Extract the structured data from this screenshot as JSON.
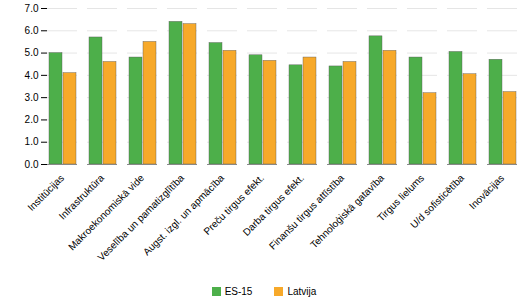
{
  "chart_data": {
    "type": "bar",
    "categories": [
      "Institūcijas",
      "Infrastruktūra",
      "Makroekonomiskā vide",
      "Veselība un pamatizglītība",
      "Augst. izgl. un apmācība",
      "Preču tirgus efekt.",
      "Darba tirgus efekt.",
      "Finanšu tirgus attīstība",
      "Tehnoloģiskā gatavība",
      "Tirgus lielums",
      "U/d sofisticētība",
      "Inovācijas"
    ],
    "series": [
      {
        "name": "ES-15",
        "color": "#4daf4a",
        "values": [
          5.0,
          5.7,
          4.8,
          6.4,
          5.45,
          4.9,
          4.45,
          4.4,
          5.75,
          4.8,
          5.05,
          4.7
        ]
      },
      {
        "name": "Latvija",
        "color": "#f7a92a",
        "values": [
          4.1,
          4.6,
          5.5,
          6.3,
          5.1,
          4.65,
          4.8,
          4.6,
          5.1,
          3.2,
          4.05,
          3.25
        ]
      }
    ],
    "ylim": [
      0,
      7
    ],
    "yticks": [
      {
        "value": 0,
        "label": "0.0"
      },
      {
        "value": 1,
        "label": "1.0"
      },
      {
        "value": 2,
        "label": "2.0"
      },
      {
        "value": 3,
        "label": "3.0"
      },
      {
        "value": 4,
        "label": "4.0"
      },
      {
        "value": 5,
        "label": "5.0"
      },
      {
        "value": 6,
        "label": "6.0"
      },
      {
        "value": 7,
        "label": "7.0"
      }
    ],
    "grid": true,
    "legend": "bottom"
  }
}
